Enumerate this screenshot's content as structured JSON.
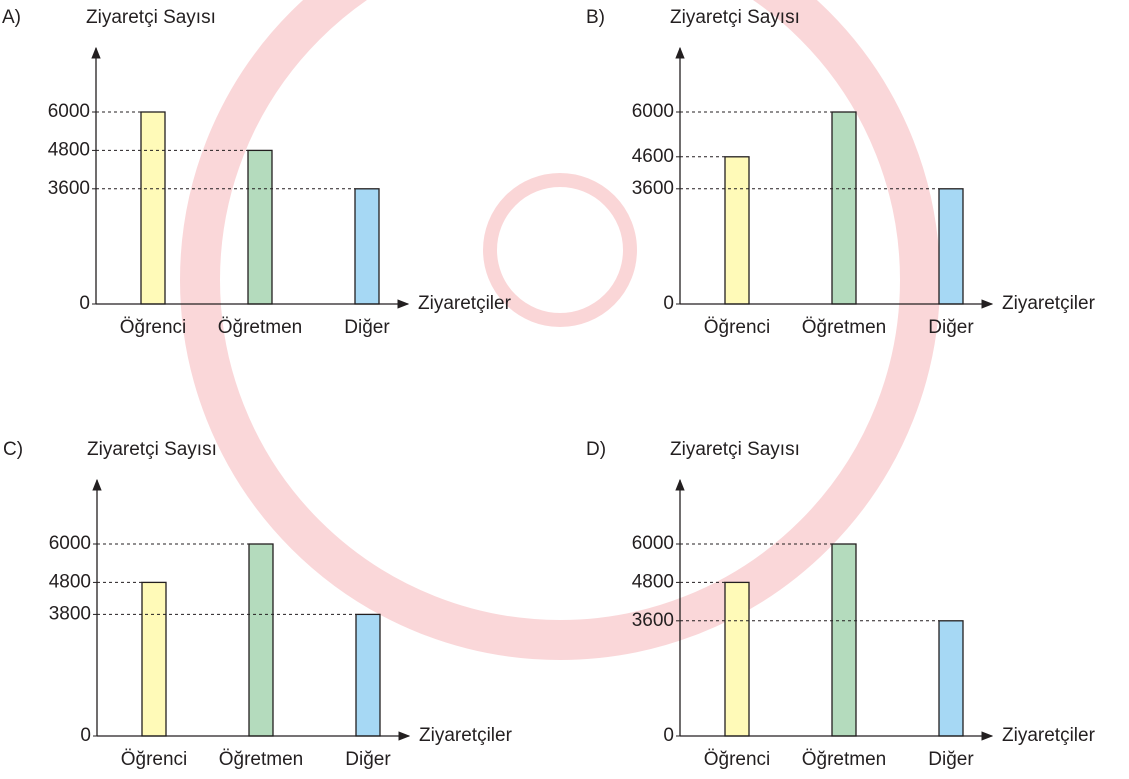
{
  "chart_data": [
    {
      "type": "bar",
      "label": "A)",
      "y_label": "Ziyaretçi Sayısı",
      "x_label": "Ziyaretçiler",
      "categories": [
        "Öğrenci",
        "Öğretmen",
        "Diğer"
      ],
      "values": [
        6000,
        4800,
        3600
      ],
      "colors": [
        "#fffab8",
        "#b4dbbd",
        "#a6d8f4"
      ],
      "ylim": [
        0,
        8000
      ],
      "yticks": [
        0,
        3600,
        4800,
        6000
      ]
    },
    {
      "type": "bar",
      "label": "B)",
      "y_label": "Ziyaretçi Sayısı",
      "x_label": "Ziyaretçiler",
      "categories": [
        "Öğrenci",
        "Öğretmen",
        "Diğer"
      ],
      "values": [
        4600,
        6000,
        3600
      ],
      "colors": [
        "#fffab8",
        "#b4dbbd",
        "#a6d8f4"
      ],
      "ylim": [
        0,
        8000
      ],
      "yticks": [
        0,
        3600,
        4600,
        6000
      ]
    },
    {
      "type": "bar",
      "label": "C)",
      "y_label": "Ziyaretçi Sayısı",
      "x_label": "Ziyaretçiler",
      "categories": [
        "Öğrenci",
        "Öğretmen",
        "Diğer"
      ],
      "values": [
        4800,
        6000,
        3800
      ],
      "colors": [
        "#fffab8",
        "#b4dbbd",
        "#a6d8f4"
      ],
      "ylim": [
        0,
        8000
      ],
      "yticks": [
        0,
        3800,
        4800,
        6000
      ]
    },
    {
      "type": "bar",
      "label": "D)",
      "y_label": "Ziyaretçi Sayısı",
      "x_label": "Ziyaretçiler",
      "categories": [
        "Öğrenci",
        "Öğretmen",
        "Diğer"
      ],
      "values": [
        4800,
        6000,
        3600
      ],
      "colors": [
        "#fffab8",
        "#b4dbbd",
        "#a6d8f4"
      ],
      "ylim": [
        0,
        8000
      ],
      "yticks": [
        0,
        3600,
        4800,
        6000
      ]
    }
  ]
}
